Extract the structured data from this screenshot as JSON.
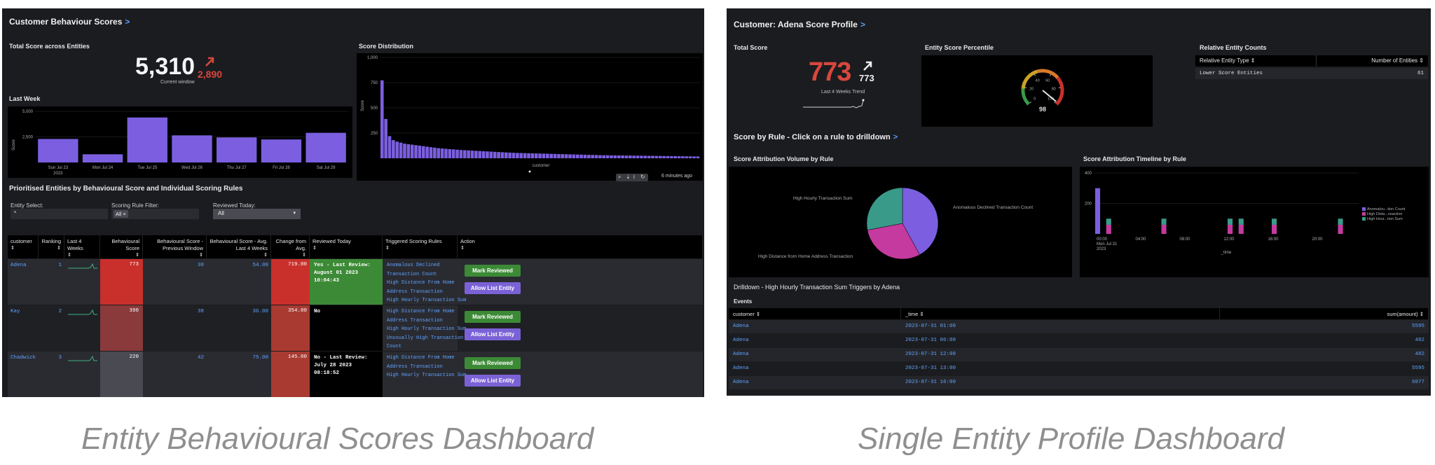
{
  "captions": {
    "left": "Entity Behavioural Scores Dashboard",
    "right": "Single Entity Profile Dashboard"
  },
  "dash1": {
    "title": "Customer Behaviour Scores",
    "title_chevron": ">",
    "total_score": {
      "title": "Total Score across Entities",
      "value": "5,310",
      "delta": "2,890",
      "subtitle": "Current window"
    },
    "last_week": {
      "title": "Last Week",
      "chart_data": {
        "type": "bar",
        "ylabel": "Score",
        "yticks": [
          "5,000",
          "2,500"
        ],
        "ylim": [
          0,
          5000
        ],
        "categories": [
          "Sun Jul 23\n2023",
          "Mon Jul 24",
          "Tue Jul 25",
          "Wed Jul 26",
          "Thu Jul 27",
          "Fri Jul 28",
          "Sat Jul 29"
        ],
        "values": [
          2300,
          800,
          4400,
          2650,
          2450,
          2250,
          2900
        ],
        "color": "#7b5fe0"
      }
    },
    "score_distribution": {
      "title": "Score Distribution",
      "chart_data": {
        "type": "bar",
        "ylabel": "Score",
        "xlabel": "customer",
        "yticks": [
          "1,000",
          "750",
          "500",
          "250"
        ],
        "ylim": [
          0,
          1000
        ],
        "values": [
          773,
          390,
          220,
          180,
          165,
          155,
          145,
          140,
          135,
          130,
          125,
          120,
          115,
          110,
          105,
          100,
          97,
          94,
          91,
          88,
          85,
          82,
          80,
          78,
          76,
          74,
          72,
          70,
          68,
          66,
          64,
          62,
          60,
          58,
          56,
          54,
          53,
          52,
          51,
          50,
          49,
          48,
          47,
          46,
          45,
          44,
          43,
          42,
          41,
          40,
          39,
          38,
          37,
          36,
          35,
          34,
          33,
          32,
          31,
          30,
          30,
          29,
          29,
          28,
          28,
          27,
          27,
          26,
          26,
          25,
          25,
          24,
          24,
          23,
          23,
          22,
          22,
          21,
          21,
          20,
          20,
          19,
          19,
          18,
          18
        ],
        "color": "#7b5fe0"
      },
      "footer_time": "6 minutes ago"
    },
    "section_title": "Prioritised Entities by Behavioural Score and Individual Scoring Rules",
    "filters": {
      "entity_label": "Entity Select:",
      "entity_value": "*",
      "rule_label": "Scoring Rule Filter:",
      "rule_value": "All ×",
      "reviewed_label": "Reviewed Today:",
      "reviewed_value": "All"
    },
    "table": {
      "headers": [
        "customer",
        "Ranking",
        "Last 4 Weeks",
        "Behavioural Score",
        "Behavioural Score - Previous Window",
        "Behavioural Score - Avg. Last 4 Weeks",
        "Change from Avg.",
        "Reviewed Today",
        "Triggered Scoring Rules",
        "Action"
      ],
      "rows": [
        {
          "customer": "Adena",
          "ranking": "1",
          "score": "773",
          "prev": "30",
          "avg": "54.00",
          "change": "719.00",
          "reviewed": "Yes - Last Review: August 01 2023 10:04:43",
          "rules": [
            "Anomalous Declined",
            "Transaction Count",
            "High Distance From Home",
            "Address Transaction",
            "High Hourly Transaction Sum"
          ],
          "score_color": "#c9302c",
          "change_color": "#c9302c",
          "reviewed_color": "#3c8a36"
        },
        {
          "customer": "Kay",
          "ranking": "2",
          "score": "390",
          "prev": "38",
          "avg": "36.00",
          "change": "354.00",
          "reviewed": "No",
          "rules": [
            "High Distance From Home",
            "Address Transaction",
            "High Hourly Transaction Sum",
            "Unusually High Transaction",
            "Count"
          ],
          "score_color": "#8a3a3a",
          "change_color": "#a83a32",
          "reviewed_color": "#000000"
        },
        {
          "customer": "Chadwick",
          "ranking": "3",
          "score": "220",
          "prev": "42",
          "avg": "75.00",
          "change": "145.00",
          "reviewed": "No - Last Review: July 28 2023 08:18:52",
          "rules": [
            "High Distance From Home",
            "Address Transaction",
            "High Hourly Transaction Sum"
          ],
          "score_color": "#4a4a52",
          "change_color": "#a83a32",
          "reviewed_color": "#000000"
        }
      ],
      "btn_mark": "Mark Reviewed",
      "btn_allow": "Allow List Entity"
    }
  },
  "dash2": {
    "title": "Customer: Adena Score Profile",
    "title_chevron": ">",
    "total_score": {
      "title": "Total Score",
      "value": "773",
      "delta": "773",
      "subtitle": "Last 4 Weeks Trend"
    },
    "percentile": {
      "title": "Entity Score Percentile",
      "value": "98",
      "ticks": [
        "0",
        "20",
        "40",
        "60",
        "80",
        "100"
      ]
    },
    "relative_counts": {
      "title": "Relative Entity Counts",
      "col1": "Relative Entity Type",
      "col2": "Number of Entities",
      "row_type": "Lower Score Entities",
      "row_value": "61"
    },
    "rule_section_title": "Score by Rule - Click on a rule to drilldown",
    "volume": {
      "title": "Score Attribution Volume by Rule",
      "chart_data": {
        "type": "pie",
        "slices": [
          {
            "label": "Anomalous Declined Transaction Count",
            "value": 42,
            "color": "#7b5fe0"
          },
          {
            "label": "High Distance from Home Address Transaction",
            "value": 30,
            "color": "#c53a9e"
          },
          {
            "label": "High Hourly Transaction Sum",
            "value": 28,
            "color": "#3a9a8a"
          }
        ]
      }
    },
    "timeline": {
      "title": "Score Attribution Timeline by Rule",
      "chart_data": {
        "type": "bar",
        "yticks": [
          "400",
          "200"
        ],
        "ylim": [
          0,
          400
        ],
        "xticks": [
          "00:00\nMon Jul 31\n2023",
          "04:00",
          "08:00",
          "12:00",
          "16:00",
          "20:00"
        ],
        "xlabel": "_time",
        "series_legend": [
          "Anomalou...tion Count",
          "High Dista...nsaction",
          "High Hour...tion Sum"
        ],
        "bars": [
          {
            "hour": 0,
            "values": [
              300,
              0,
              0
            ]
          },
          {
            "hour": 1,
            "values": [
              0,
              60,
              40
            ]
          },
          {
            "hour": 6,
            "values": [
              0,
              60,
              40
            ]
          },
          {
            "hour": 12,
            "values": [
              0,
              60,
              40
            ]
          },
          {
            "hour": 13,
            "values": [
              0,
              60,
              40
            ]
          },
          {
            "hour": 16,
            "values": [
              0,
              60,
              40
            ]
          },
          {
            "hour": 22,
            "values": [
              0,
              60,
              40
            ]
          }
        ],
        "colors": [
          "#7b5fe0",
          "#c53a9e",
          "#3a9a8a"
        ]
      }
    },
    "drilldown": {
      "title": "Drilldown - High Hourly Transaction Sum Triggers by Adena",
      "events_label": "Events",
      "headers": [
        "customer",
        "_time",
        "sum(amount)"
      ],
      "rows": [
        [
          "Adena",
          "2023-07-31 01:00",
          "5595"
        ],
        [
          "Adena",
          "2023-07-31 06:00",
          "482"
        ],
        [
          "Adena",
          "2023-07-31 12:00",
          "482"
        ],
        [
          "Adena",
          "2023-07-31 13:00",
          "5595"
        ],
        [
          "Adena",
          "2023-07-31 16:00",
          "6077"
        ]
      ]
    }
  }
}
